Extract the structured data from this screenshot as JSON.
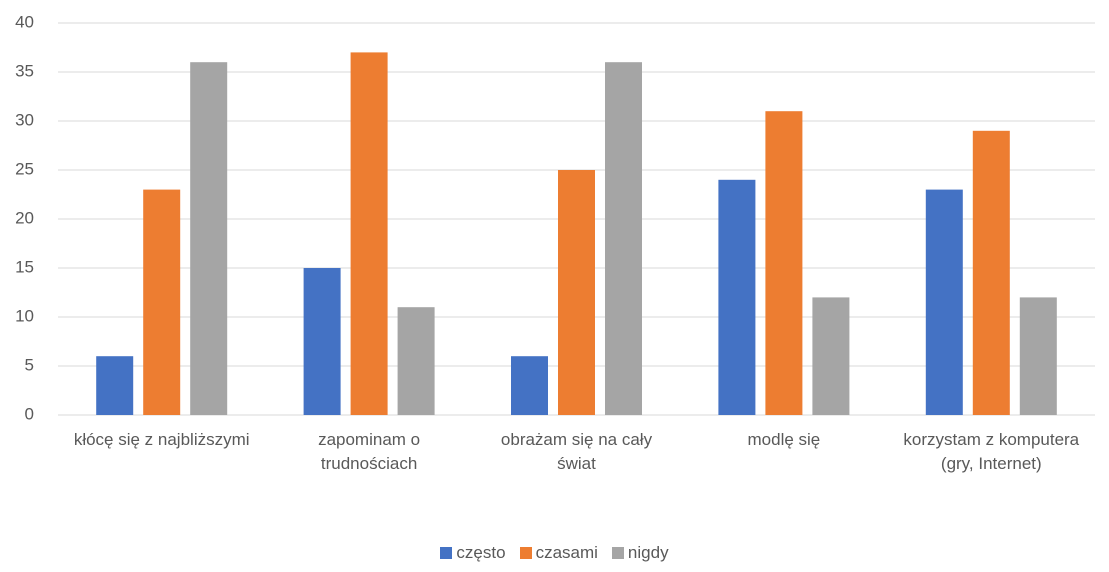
{
  "chart_data": {
    "type": "bar",
    "categories": [
      "kłócę się z najbliższymi",
      "zapominam o trudnościach",
      "obrażam się na cały świat",
      "modlę się",
      "korzystam z komputera (gry, Internet)"
    ],
    "series": [
      {
        "name": "często",
        "color": "#4472c4",
        "values": [
          6,
          15,
          6,
          24,
          23
        ]
      },
      {
        "name": "czasami",
        "color": "#ed7d31",
        "values": [
          23,
          37,
          25,
          31,
          29
        ]
      },
      {
        "name": "nigdy",
        "color": "#a5a5a5",
        "values": [
          36,
          11,
          36,
          12,
          12
        ]
      }
    ],
    "ylim": [
      0,
      40
    ],
    "yticks": [
      0,
      5,
      10,
      15,
      20,
      25,
      30,
      35,
      40
    ],
    "grid": true,
    "legend": "bottom"
  }
}
